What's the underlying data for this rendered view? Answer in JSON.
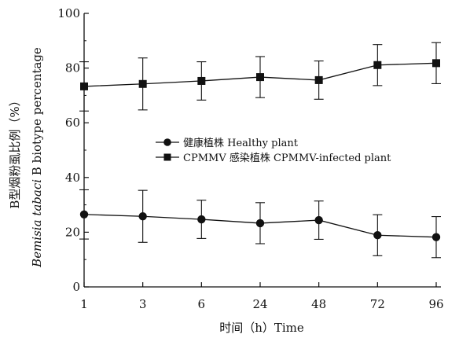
{
  "chart_data": {
    "type": "line",
    "categories": [
      "1",
      "3",
      "6",
      "24",
      "48",
      "72",
      "96"
    ],
    "y_ticks": [
      "0",
      "20",
      "40",
      "60",
      "80",
      "100"
    ],
    "ylim": [
      0,
      100
    ],
    "xlabel": "时间（h）Time",
    "ylabel_cn": "B型烟粉虱比例（%）",
    "ylabel_en_italic": "Bemisia tabaci",
    "ylabel_en_rest": " B biotype percentage",
    "legend_position": "center-right",
    "grid": false,
    "series": [
      {
        "name": "健康植株 Healthy plant",
        "marker": "circle",
        "values": [
          26.5,
          25.8,
          24.7,
          23.3,
          24.4,
          18.9,
          18.2
        ],
        "errors": [
          9.0,
          9.5,
          7.0,
          7.5,
          7.0,
          7.5,
          7.5
        ]
      },
      {
        "name": "CPMMV 感染植株 CPMMV-infected plant",
        "marker": "square",
        "values": [
          73.3,
          74.2,
          75.3,
          76.7,
          75.6,
          81.1,
          81.8
        ],
        "errors": [
          9.0,
          9.5,
          7.0,
          7.5,
          7.0,
          7.5,
          7.5
        ]
      }
    ]
  }
}
